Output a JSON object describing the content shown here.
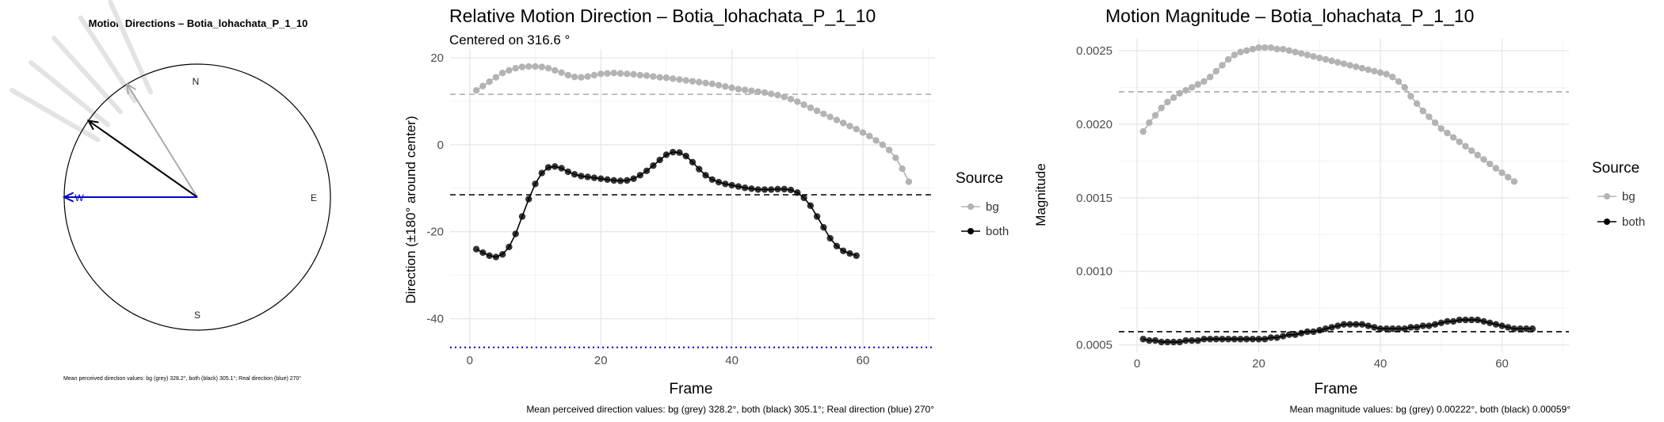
{
  "chart_data": [
    {
      "type": "compass",
      "title": "Motion Directions – Botia_lohachata_P_1_10",
      "compass_labels": {
        "n": "N",
        "e": "E",
        "s": "S",
        "w": "W"
      },
      "arrows": [
        {
          "name": "bg",
          "angle_deg": 328.2,
          "color": "#aaaaaa"
        },
        {
          "name": "both",
          "angle_deg": 305.1,
          "color": "#000000"
        },
        {
          "name": "real",
          "angle_deg": 270,
          "color": "#0000cc"
        }
      ],
      "caption": "Mean perceived direction values: bg (grey) 328.2°, both (black) 305.1°; Real direction (blue) 270°"
    },
    {
      "type": "line",
      "title": "Relative Motion Direction – Botia_lohachata_P_1_10",
      "subtitle": "Centered on  316.6 °",
      "xlabel": "Frame",
      "ylabel": "Direction (±180° around center)",
      "xlim": [
        -3,
        71
      ],
      "ylim": [
        -47,
        22
      ],
      "xticks": [
        0,
        20,
        40,
        60
      ],
      "yticks": [
        20,
        0,
        -20,
        -40
      ],
      "legend_title": "Source",
      "series": [
        {
          "name": "bg",
          "color": "#b3b3b3",
          "x_start": 1,
          "x_step": 1,
          "values": [
            12.5,
            13.5,
            14.5,
            15.5,
            16.5,
            17.1,
            17.6,
            17.9,
            18.0,
            18.0,
            17.9,
            17.6,
            17.1,
            16.6,
            16.0,
            15.6,
            15.5,
            15.7,
            16.0,
            16.3,
            16.4,
            16.5,
            16.4,
            16.3,
            16.2,
            16.0,
            15.9,
            15.7,
            15.5,
            15.4,
            15.2,
            15.0,
            14.8,
            14.6,
            14.4,
            14.2,
            14.0,
            13.7,
            13.4,
            13.1,
            12.8,
            12.6,
            12.4,
            12.2,
            12.0,
            11.7,
            11.4,
            11.0,
            10.5,
            9.9,
            9.2,
            8.5,
            7.8,
            7.1,
            6.4,
            5.7,
            5.0,
            4.3,
            3.6,
            2.8,
            2.0,
            1.0,
            0.0,
            -1.2,
            -3.0,
            -5.5,
            -8.5
          ]
        },
        {
          "name": "both",
          "color": "#000000",
          "x_start": 1,
          "x_step": 1,
          "values": [
            -24.0,
            -24.8,
            -25.5,
            -25.8,
            -25.2,
            -23.5,
            -20.5,
            -16.5,
            -12.5,
            -9.0,
            -6.5,
            -5.2,
            -5.0,
            -5.4,
            -6.2,
            -6.8,
            -7.2,
            -7.4,
            -7.6,
            -7.8,
            -8.0,
            -8.2,
            -8.3,
            -8.2,
            -7.8,
            -7.0,
            -6.0,
            -4.8,
            -3.5,
            -2.3,
            -1.7,
            -1.8,
            -2.6,
            -4.0,
            -5.6,
            -7.0,
            -8.0,
            -8.6,
            -9.0,
            -9.3,
            -9.6,
            -9.9,
            -10.1,
            -10.3,
            -10.3,
            -10.3,
            -10.2,
            -10.2,
            -10.4,
            -11.0,
            -12.2,
            -14.0,
            -16.5,
            -19.0,
            -21.5,
            -23.3,
            -24.4,
            -25.0,
            -25.5
          ]
        }
      ],
      "reference_lines": [
        {
          "name": "bg-mean",
          "y": 11.6,
          "color": "#aaaaaa",
          "style": "dashed"
        },
        {
          "name": "both-mean",
          "y": -11.5,
          "color": "#000000",
          "style": "dashed"
        },
        {
          "name": "real",
          "y": -46.6,
          "color": "#0000cc",
          "style": "dotted"
        }
      ],
      "caption": "Mean perceived direction values: bg (grey) 328.2°, both (black) 305.1°; Real direction (blue) 270°"
    },
    {
      "type": "line",
      "title": "Motion Magnitude – Botia_lohachata_P_1_10",
      "xlabel": "Frame",
      "ylabel": "Magnitude",
      "xlim": [
        -3,
        71
      ],
      "ylim": [
        0.00045,
        0.00258
      ],
      "xticks": [
        0,
        20,
        40,
        60
      ],
      "yticks": [
        0.0025,
        0.002,
        0.0015,
        0.001,
        0.0005
      ],
      "ytick_labels": [
        "0.0025",
        "0.0020",
        "0.0015",
        "0.0010",
        "0.0005"
      ],
      "legend_title": "Source",
      "series": [
        {
          "name": "bg",
          "color": "#b3b3b3",
          "x_start": 1,
          "x_step": 1,
          "values": [
            0.00195,
            0.00201,
            0.00206,
            0.00211,
            0.00215,
            0.00218,
            0.00221,
            0.00223,
            0.00225,
            0.00227,
            0.00229,
            0.00232,
            0.00236,
            0.0024,
            0.00244,
            0.00247,
            0.00249,
            0.0025,
            0.00251,
            0.00252,
            0.00252,
            0.00252,
            0.00251,
            0.00251,
            0.0025,
            0.00249,
            0.00248,
            0.00247,
            0.00246,
            0.00245,
            0.00244,
            0.00243,
            0.00242,
            0.00241,
            0.0024,
            0.00239,
            0.00238,
            0.00237,
            0.00236,
            0.00235,
            0.00234,
            0.00232,
            0.00229,
            0.00225,
            0.00219,
            0.00214,
            0.00209,
            0.00205,
            0.00201,
            0.00197,
            0.00194,
            0.00191,
            0.00188,
            0.00185,
            0.00182,
            0.00179,
            0.00176,
            0.00173,
            0.0017,
            0.00167,
            0.00164,
            0.00161
          ]
        },
        {
          "name": "both",
          "color": "#000000",
          "x_start": 1,
          "x_step": 1,
          "values": [
            0.00054,
            0.00053,
            0.00053,
            0.00052,
            0.00052,
            0.00052,
            0.00052,
            0.00053,
            0.00053,
            0.00053,
            0.00054,
            0.00054,
            0.00054,
            0.00054,
            0.00054,
            0.00054,
            0.00054,
            0.00054,
            0.00054,
            0.00054,
            0.00054,
            0.00055,
            0.00055,
            0.00056,
            0.00057,
            0.00057,
            0.00058,
            0.00059,
            0.00059,
            0.0006,
            0.00061,
            0.00062,
            0.00063,
            0.00064,
            0.00064,
            0.00064,
            0.00064,
            0.00063,
            0.00062,
            0.00061,
            0.00061,
            0.00061,
            0.00061,
            0.00061,
            0.00062,
            0.00062,
            0.00063,
            0.00063,
            0.00064,
            0.00065,
            0.00066,
            0.00066,
            0.00067,
            0.00067,
            0.00067,
            0.00067,
            0.00066,
            0.00065,
            0.00064,
            0.00063,
            0.00062,
            0.00061,
            0.00061,
            0.00061,
            0.00061
          ]
        }
      ],
      "reference_lines": [
        {
          "name": "bg-mean",
          "y": 0.00222,
          "color": "#aaaaaa",
          "style": "dashed"
        },
        {
          "name": "both-mean",
          "y": 0.00059,
          "color": "#000000",
          "style": "dashed"
        }
      ],
      "caption": "Mean magnitude values: bg (grey) 0.00222°, both (black) 0.00059°"
    }
  ]
}
